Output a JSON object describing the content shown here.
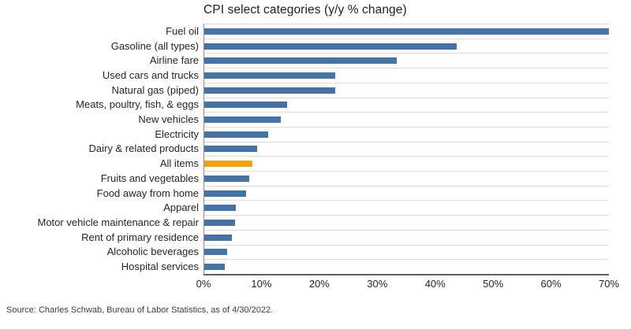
{
  "title": "CPI select categories (y/y % change)",
  "source_note": "Source: Charles Schwab, Bureau of Labor Statistics, as of 4/30/2022.",
  "colors": {
    "bar": "#4573a7",
    "highlight": "#f0a30a",
    "gridline": "#dcdcdc",
    "axis_line": "#5f5f5f",
    "text": "#262626"
  },
  "chart_data": {
    "type": "bar",
    "orientation": "horizontal",
    "title": "CPI select categories (y/y % change)",
    "xlabel": "",
    "ylabel": "",
    "xlim": [
      0,
      70
    ],
    "x_tick_labels": [
      "0%",
      "10%",
      "20%",
      "30%",
      "40%",
      "50%",
      "60%",
      "70%"
    ],
    "grid": "horizontal row separators, no vertical gridlines",
    "legend_position": "none",
    "highlight_category": "All items",
    "categories": [
      "Fuel oil",
      "Gasoline (all types)",
      "Airline fare",
      "Used cars and trucks",
      "Natural gas (piped)",
      "Meats, poultry, fish, & eggs",
      "New vehicles",
      "Electricity",
      "Dairy & related products",
      "All items",
      "Fruits and vegetables",
      "Food away from home",
      "Apparel",
      "Motor vehicle maintenance & repair",
      "Rent of primary residence",
      "Alcoholic beverages",
      "Hospital services"
    ],
    "values": [
      70,
      43.6,
      33.3,
      22.7,
      22.7,
      14.3,
      13.2,
      11.0,
      9.1,
      8.3,
      7.8,
      7.2,
      5.4,
      5.3,
      4.8,
      4.0,
      3.6
    ]
  }
}
